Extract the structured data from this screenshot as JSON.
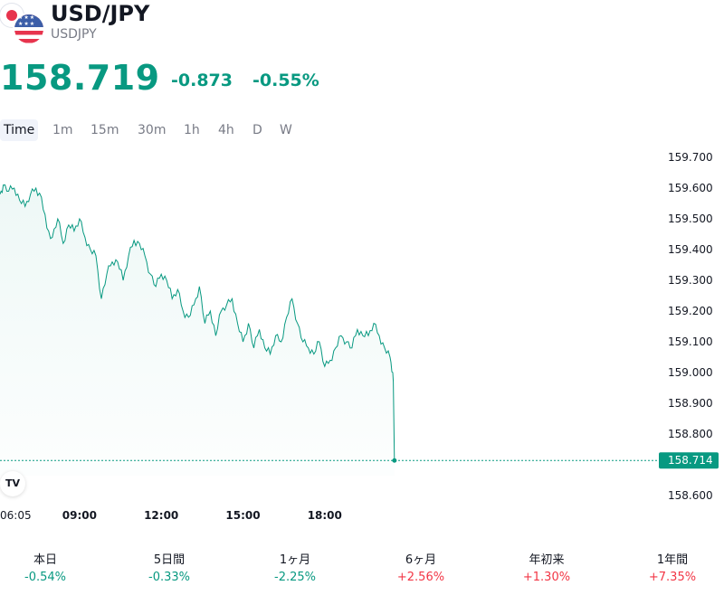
{
  "header": {
    "title": "USD/JPY",
    "subtitle": "USDJPY",
    "price": "158.719",
    "change": "-0.873",
    "change_pct": "-0.55%"
  },
  "tabs": [
    "Time",
    "1m",
    "15m",
    "30m",
    "1h",
    "4h",
    "D",
    "W"
  ],
  "active_tab": "Time",
  "colors": {
    "up": "#f23645",
    "down": "#089981",
    "line": "#089981"
  },
  "chart_data": {
    "type": "area",
    "y_ticks": [
      "159.700",
      "159.600",
      "159.500",
      "159.400",
      "159.300",
      "159.200",
      "159.100",
      "159.000",
      "158.900",
      "158.800",
      "158.600"
    ],
    "x_ticks": [
      "06:05",
      "09:00",
      "12:00",
      "15:00",
      "18:00"
    ],
    "current_value_label": "158.714",
    "ylim": [
      158.54,
      159.78
    ],
    "x": [
      6.08,
      6.2,
      6.4,
      6.6,
      6.8,
      7.0,
      7.2,
      7.4,
      7.6,
      7.8,
      8.0,
      8.2,
      8.4,
      8.6,
      8.8,
      9.0,
      9.2,
      9.4,
      9.6,
      9.8,
      10.0,
      10.2,
      10.4,
      10.6,
      10.8,
      11.0,
      11.2,
      11.4,
      11.6,
      11.8,
      12.0,
      12.2,
      12.4,
      12.6,
      12.8,
      13.0,
      13.2,
      13.4,
      13.6,
      13.8,
      14.0,
      14.2,
      14.4,
      14.6,
      14.8,
      15.0,
      15.2,
      15.4,
      15.6,
      15.8,
      16.0,
      16.2,
      16.4,
      16.6,
      16.8,
      17.0,
      17.2,
      17.4,
      17.6,
      17.8,
      18.0,
      18.2,
      18.4,
      18.6,
      18.8,
      19.0,
      19.2,
      19.4,
      19.6,
      19.8,
      20.0,
      20.2,
      20.4,
      20.5,
      20.52,
      20.56
    ],
    "y": [
      159.58,
      159.61,
      159.59,
      159.6,
      159.56,
      159.54,
      159.58,
      159.6,
      159.57,
      159.47,
      159.44,
      159.5,
      159.42,
      159.48,
      159.46,
      159.5,
      159.44,
      159.4,
      159.38,
      159.24,
      159.32,
      159.36,
      159.36,
      159.3,
      159.38,
      159.43,
      159.42,
      159.38,
      159.32,
      159.28,
      159.32,
      159.3,
      159.24,
      159.27,
      159.2,
      159.18,
      159.22,
      159.28,
      159.16,
      159.2,
      159.12,
      159.2,
      159.22,
      159.24,
      159.16,
      159.1,
      159.16,
      159.08,
      159.14,
      159.08,
      159.06,
      159.12,
      159.1,
      159.18,
      159.24,
      159.16,
      159.1,
      159.08,
      159.06,
      159.1,
      159.02,
      159.04,
      159.08,
      159.12,
      159.1,
      159.08,
      159.14,
      159.12,
      159.12,
      159.16,
      159.12,
      159.08,
      159.05,
      159.0,
      158.97,
      158.714
    ]
  },
  "performance": [
    {
      "label": "本日",
      "value": "-0.54%",
      "dir": "neg"
    },
    {
      "label": "5日間",
      "value": "-0.33%",
      "dir": "neg"
    },
    {
      "label": "1ヶ月",
      "value": "-2.25%",
      "dir": "neg"
    },
    {
      "label": "6ヶ月",
      "value": "+2.56%",
      "dir": "pos"
    },
    {
      "label": "年初来",
      "value": "+1.30%",
      "dir": "pos"
    },
    {
      "label": "1年間",
      "value": "+7.35%",
      "dir": "pos"
    }
  ],
  "logo_text": "TV"
}
